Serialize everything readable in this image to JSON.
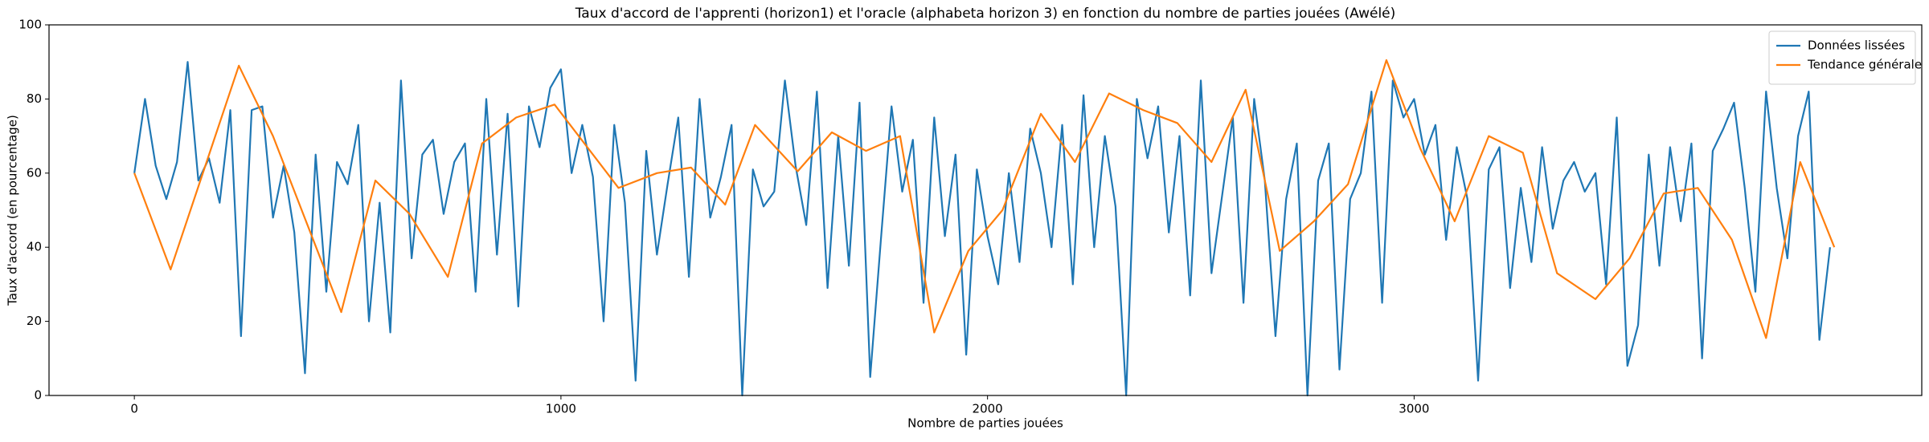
{
  "chart_data": {
    "type": "line",
    "title": "Taux d'accord de l'apprenti (horizon1) et l'oracle (alphabeta horizon 3) en fonction du nombre de parties jouées (Awélé)",
    "x_label": "Nombre de parties jouées",
    "y_label": "Taux d'accord (en pourcentage)",
    "xlim": [
      -200,
      4190
    ],
    "ylim": [
      0,
      100
    ],
    "xticks": [
      0,
      1000,
      2000,
      3000
    ],
    "yticks": [
      0,
      20,
      40,
      60,
      80,
      100
    ],
    "grid": false,
    "legend": "upper right",
    "series": [
      {
        "name": "Données lissées",
        "color": "#1f77b4",
        "x": [
          0,
          25,
          50,
          75,
          100,
          125,
          150,
          175,
          200,
          225,
          250,
          275,
          300,
          325,
          350,
          375,
          400,
          425,
          450,
          475,
          500,
          525,
          550,
          575,
          600,
          625,
          650,
          675,
          700,
          725,
          750,
          775,
          800,
          825,
          850,
          875,
          900,
          925,
          950,
          975,
          1000,
          1025,
          1050,
          1075,
          1100,
          1125,
          1150,
          1175,
          1200,
          1225,
          1250,
          1275,
          1300,
          1325,
          1350,
          1375,
          1400,
          1425,
          1450,
          1475,
          1500,
          1525,
          1550,
          1575,
          1600,
          1625,
          1650,
          1675,
          1700,
          1725,
          1750,
          1775,
          1800,
          1825,
          1850,
          1875,
          1900,
          1925,
          1950,
          1975,
          2000,
          2025,
          2050,
          2075,
          2100,
          2125,
          2150,
          2175,
          2200,
          2225,
          2250,
          2275,
          2300,
          2325,
          2350,
          2375,
          2400,
          2425,
          2450,
          2475,
          2500,
          2525,
          2550,
          2575,
          2600,
          2625,
          2650,
          2675,
          2700,
          2725,
          2750,
          2775,
          2800,
          2825,
          2850,
          2875,
          2900,
          2925,
          2950,
          2975,
          3000,
          3025,
          3050,
          3075,
          3100,
          3125,
          3150,
          3175,
          3200,
          3225,
          3250,
          3275,
          3300,
          3325,
          3350,
          3375,
          3400,
          3425,
          3450,
          3475,
          3500,
          3525,
          3550,
          3575,
          3600,
          3625,
          3650,
          3675,
          3700,
          3725,
          3750,
          3775,
          3800,
          3825,
          3850,
          3875,
          3900,
          3925,
          3950,
          3975
        ],
        "values": [
          60,
          80,
          62,
          53,
          63,
          90,
          58,
          64,
          52,
          77,
          16,
          77,
          78,
          48,
          62,
          44,
          6,
          65,
          28,
          63,
          57,
          73,
          20,
          52,
          17,
          85,
          37,
          65,
          69,
          49,
          63,
          68,
          28,
          80,
          38,
          76,
          24,
          78,
          67,
          83,
          88,
          60,
          73,
          59,
          20,
          73,
          52,
          4,
          66,
          38,
          57,
          75,
          32,
          80,
          48,
          59,
          73,
          0,
          61,
          51,
          55,
          85,
          62,
          46,
          82,
          29,
          70,
          35,
          79,
          5,
          42,
          78,
          55,
          69,
          25,
          75,
          43,
          65,
          11,
          61,
          43,
          30,
          60,
          36,
          72,
          60,
          40,
          73,
          30,
          81,
          40,
          70,
          51,
          0,
          80,
          64,
          78,
          44,
          70,
          27,
          85,
          33,
          54,
          75,
          25,
          80,
          58,
          16,
          53,
          68,
          0,
          58,
          68,
          7,
          53,
          60,
          82,
          25,
          85,
          75,
          80,
          65,
          73,
          42,
          67,
          53,
          4,
          61,
          67,
          29,
          56,
          36,
          67,
          45,
          58,
          63,
          55,
          60,
          30,
          75,
          8,
          19,
          65,
          35,
          67,
          47,
          68,
          10,
          66,
          72,
          79,
          56,
          28,
          82,
          56,
          37,
          70,
          82,
          15,
          40
        ]
      },
      {
        "name": "Tendance générale",
        "color": "#ff7f0e",
        "x": [
          0,
          85,
          245,
          325,
          485,
          565,
          645,
          735,
          815,
          895,
          985,
          1135,
          1225,
          1305,
          1385,
          1455,
          1555,
          1635,
          1715,
          1795,
          1875,
          1955,
          2035,
          2125,
          2205,
          2285,
          2365,
          2445,
          2525,
          2605,
          2685,
          2765,
          2845,
          2935,
          3015,
          3095,
          3175,
          3255,
          3335,
          3425,
          3505,
          3585,
          3665,
          3745,
          3825,
          3905,
          3985
        ],
        "values": [
          60,
          34,
          89,
          70,
          22.5,
          58,
          49,
          32,
          68,
          75,
          78.5,
          56,
          60,
          61.5,
          51.5,
          73,
          60.5,
          71,
          66,
          70,
          17,
          39,
          50,
          76,
          63,
          81.5,
          77,
          73.5,
          63,
          82.5,
          39,
          47,
          57,
          90.5,
          66.5,
          47,
          70,
          65.5,
          33,
          26,
          37,
          54.5,
          56,
          42,
          15.5,
          63,
          40
        ]
      }
    ]
  }
}
